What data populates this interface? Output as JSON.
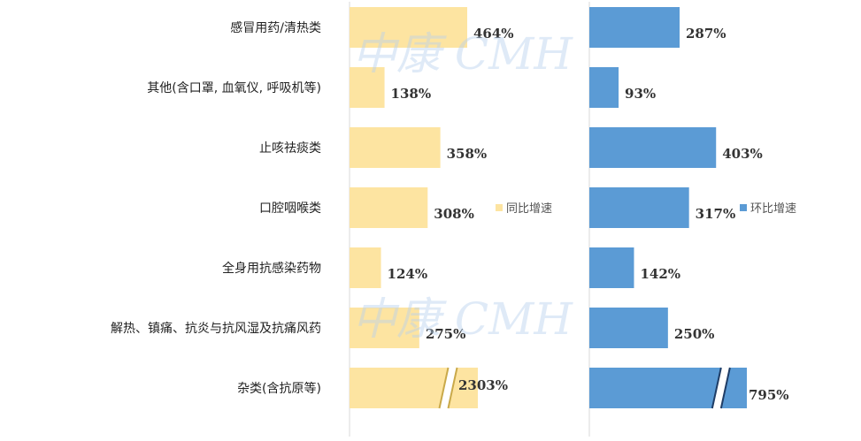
{
  "watermark": "中康 CMH",
  "chart_data": {
    "type": "bar",
    "orientation": "horizontal",
    "categories": [
      "感冒用药/清热类",
      "其他(含口罩, 血氧仪, 呼吸机等)",
      "止咳祛痰类",
      "口腔咽喉类",
      "全身用抗感染药物",
      "解热、镇痛、抗炎与抗风湿及抗痛风药",
      "杂类(含抗原等)"
    ],
    "series": [
      {
        "name": "同比增速",
        "color": "#fde4a1",
        "values": [
          464,
          138,
          358,
          308,
          124,
          275,
          2303
        ],
        "value_labels": [
          "464%",
          "138%",
          "358%",
          "308%",
          "124%",
          "275%",
          "2303%"
        ],
        "axis_break_on_last": true
      },
      {
        "name": "环比增速",
        "color": "#5b9bd5",
        "values": [
          287,
          93,
          403,
          317,
          142,
          250,
          795
        ],
        "value_labels": [
          "287%",
          "93%",
          "403%",
          "317%",
          "142%",
          "250%",
          "795%"
        ],
        "axis_break_on_last": true
      }
    ],
    "legend_position": "middle-right of each panel",
    "grid": false
  }
}
